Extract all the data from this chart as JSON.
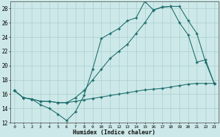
{
  "xlabel": "Humidex (Indice chaleur)",
  "xlim": [
    -0.5,
    23.5
  ],
  "ylim": [
    12,
    29
  ],
  "yticks": [
    12,
    14,
    16,
    18,
    20,
    22,
    24,
    26,
    28
  ],
  "xticks": [
    0,
    1,
    2,
    3,
    4,
    5,
    6,
    7,
    8,
    9,
    10,
    11,
    12,
    13,
    14,
    15,
    16,
    17,
    18,
    19,
    20,
    21,
    22,
    23
  ],
  "background_color": "#cde8e8",
  "grid_color": "#a8cece",
  "line_color": "#1a6b6b",
  "curve1_x": [
    0,
    1,
    2,
    3,
    4,
    5,
    6,
    7,
    8,
    9,
    10,
    11,
    12,
    13,
    14,
    15,
    16,
    17,
    18,
    19,
    20,
    21,
    22,
    23
  ],
  "curve1_y": [
    16.5,
    15.5,
    15.3,
    14.5,
    14.0,
    13.2,
    12.3,
    13.5,
    15.8,
    19.5,
    23.8,
    24.5,
    25.2,
    26.3,
    26.7,
    29.0,
    27.8,
    28.2,
    28.3,
    26.0,
    24.3,
    20.5,
    20.8,
    17.5
  ],
  "curve2_x": [
    0,
    1,
    2,
    3,
    4,
    5,
    6,
    7,
    8,
    9,
    10,
    11,
    12,
    13,
    14,
    15,
    16,
    17,
    18,
    19,
    20,
    21,
    22,
    23
  ],
  "curve2_y": [
    16.5,
    15.5,
    15.3,
    15.0,
    15.0,
    14.8,
    14.8,
    15.5,
    16.5,
    18.0,
    19.5,
    21.0,
    22.0,
    23.0,
    24.5,
    26.0,
    27.8,
    28.2,
    28.3,
    28.3,
    26.3,
    24.5,
    20.5,
    17.5
  ],
  "curve3_x": [
    0,
    1,
    2,
    3,
    4,
    5,
    6,
    7,
    8,
    9,
    10,
    11,
    12,
    13,
    14,
    15,
    16,
    17,
    18,
    19,
    20,
    21,
    22,
    23
  ],
  "curve3_y": [
    16.5,
    15.5,
    15.3,
    15.0,
    15.0,
    14.8,
    14.8,
    15.0,
    15.2,
    15.4,
    15.6,
    15.8,
    16.0,
    16.2,
    16.4,
    16.6,
    16.7,
    16.8,
    17.0,
    17.2,
    17.4,
    17.5,
    17.5,
    17.5
  ]
}
